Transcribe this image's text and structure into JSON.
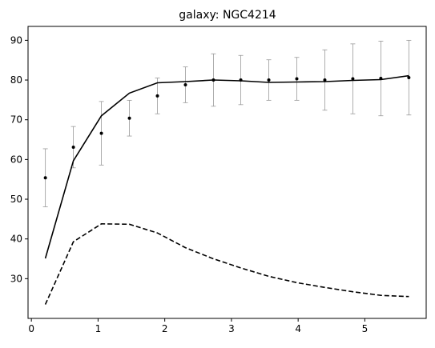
{
  "chart_data": {
    "type": "line",
    "title": "galaxy: NGC4214",
    "xlabel": "",
    "ylabel": "",
    "xlim": [
      -0.05,
      5.92
    ],
    "ylim": [
      20,
      93.5
    ],
    "xticks": [
      0,
      1,
      2,
      3,
      4,
      5
    ],
    "yticks": [
      30,
      40,
      50,
      60,
      70,
      80,
      90
    ],
    "grid": false,
    "legend": "none",
    "observed": {
      "x": [
        0.21,
        0.63,
        1.05,
        1.47,
        1.89,
        2.31,
        2.73,
        3.14,
        3.56,
        3.98,
        4.4,
        4.82,
        5.24,
        5.66
      ],
      "y": [
        55.4,
        63.1,
        66.6,
        70.4,
        76.0,
        78.8,
        80.0,
        80.0,
        80.0,
        80.3,
        80.0,
        80.3,
        80.4,
        80.6
      ],
      "yerr": [
        7.3,
        5.2,
        8.0,
        4.5,
        4.5,
        4.5,
        6.6,
        6.2,
        5.1,
        5.4,
        7.6,
        8.8,
        9.4,
        9.4
      ],
      "color": "#000000",
      "errcolor": "#999999"
    },
    "series": [
      {
        "style": "solid",
        "color": "#000000",
        "x": [
          0.21,
          0.63,
          1.05,
          1.47,
          1.89,
          2.31,
          2.73,
          3.14,
          3.56,
          3.98,
          4.4,
          4.82,
          5.24,
          5.66
        ],
        "y": [
          35.1,
          59.7,
          71.0,
          76.7,
          79.3,
          79.6,
          80.0,
          79.8,
          79.4,
          79.5,
          79.6,
          79.9,
          80.1,
          81.1
        ]
      },
      {
        "style": "dashed",
        "color": "#000000",
        "x": [
          0.21,
          0.63,
          1.05,
          1.47,
          1.89,
          2.31,
          2.73,
          3.14,
          3.56,
          3.98,
          4.4,
          4.82,
          5.24,
          5.66
        ],
        "y": [
          23.5,
          39.3,
          43.8,
          43.7,
          41.5,
          37.8,
          35.0,
          32.7,
          30.6,
          29.0,
          27.8,
          26.7,
          25.8,
          25.5
        ]
      }
    ]
  }
}
